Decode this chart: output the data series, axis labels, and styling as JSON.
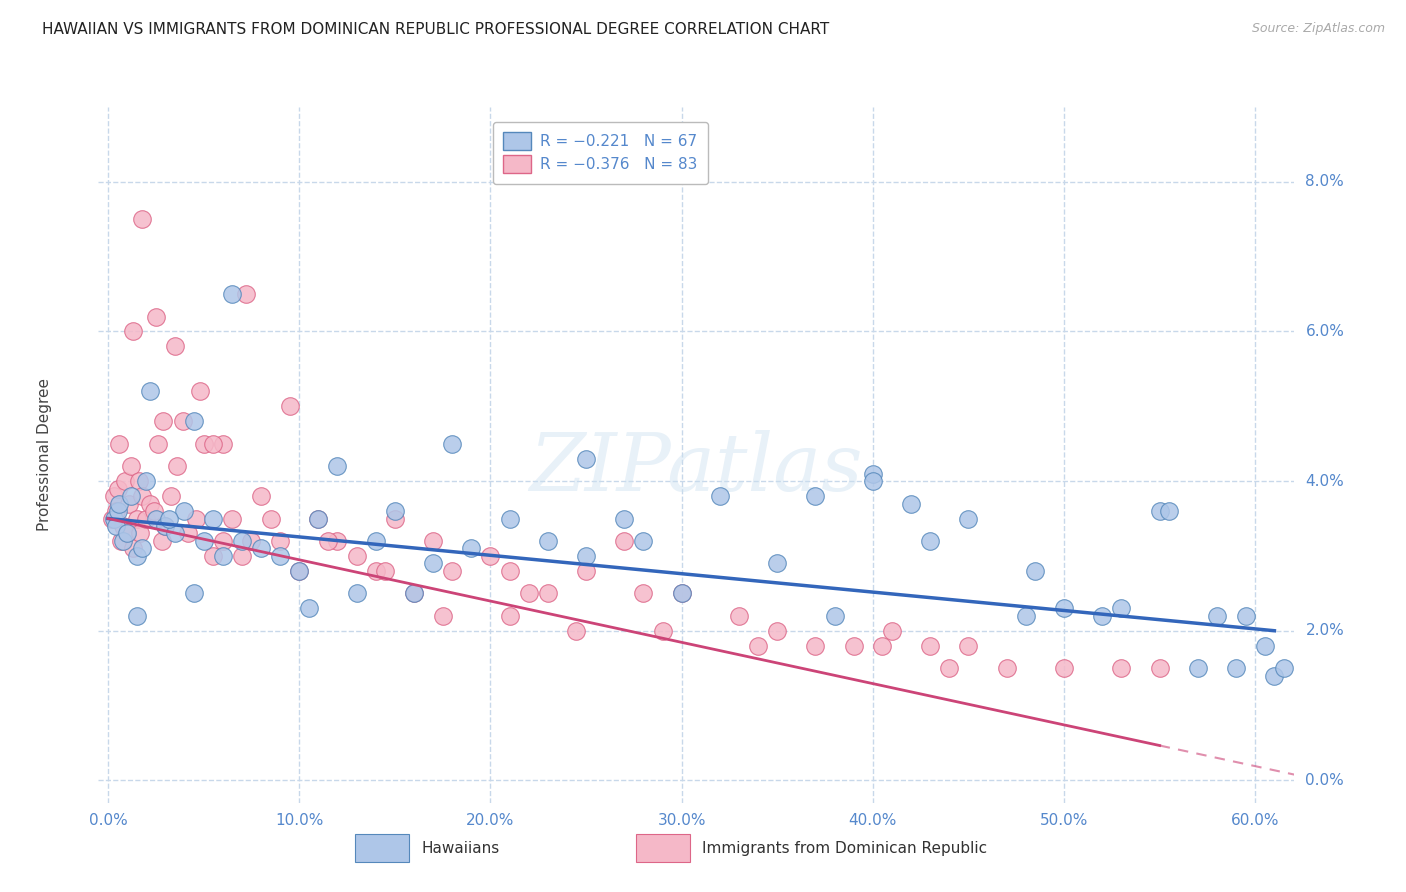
{
  "title": "HAWAIIAN VS IMMIGRANTS FROM DOMINICAN REPUBLIC PROFESSIONAL DEGREE CORRELATION CHART",
  "source": "Source: ZipAtlas.com",
  "xlabel_vals": [
    0.0,
    10.0,
    20.0,
    30.0,
    40.0,
    50.0,
    60.0
  ],
  "ylabel": "Professional Degree",
  "ylabel_vals": [
    0.0,
    2.0,
    4.0,
    6.0,
    8.0
  ],
  "ylim": [
    -0.3,
    9.0
  ],
  "xlim": [
    -0.5,
    62.0
  ],
  "blue_color": "#aec6e8",
  "pink_color": "#f5b8c8",
  "blue_edge": "#5588bb",
  "pink_edge": "#dd6688",
  "trend_blue": "#3366bb",
  "trend_pink": "#cc4477",
  "legend_R1": "R = −0.221",
  "legend_N1": "N = 67",
  "legend_R2": "R = −0.376",
  "legend_N2": "N = 83",
  "blue_line_x0": 0.0,
  "blue_line_y0": 3.5,
  "blue_line_x1": 61.0,
  "blue_line_y1": 2.0,
  "pink_line_x0": 0.0,
  "pink_line_y0": 3.5,
  "pink_line_x1": 58.0,
  "pink_line_y1": 0.3,
  "blue_scatter_x": [
    0.3,
    0.4,
    0.5,
    0.6,
    0.8,
    1.0,
    1.2,
    1.5,
    1.8,
    2.0,
    2.5,
    3.0,
    3.5,
    4.0,
    4.5,
    5.0,
    5.5,
    6.0,
    7.0,
    8.0,
    9.0,
    10.0,
    11.0,
    12.0,
    13.0,
    14.0,
    15.0,
    17.0,
    19.0,
    21.0,
    23.0,
    25.0,
    27.0,
    30.0,
    32.0,
    35.0,
    38.0,
    40.0,
    42.0,
    45.0,
    48.0,
    50.0,
    53.0,
    55.0,
    57.0,
    59.0,
    61.0,
    2.2,
    3.2,
    6.5,
    18.0,
    25.0,
    40.0,
    48.5,
    55.5,
    59.5,
    1.5,
    4.5,
    10.5,
    16.0,
    28.0,
    37.0,
    43.0,
    52.0,
    58.0,
    60.5,
    61.5
  ],
  "blue_scatter_y": [
    3.5,
    3.4,
    3.6,
    3.7,
    3.2,
    3.3,
    3.8,
    3.0,
    3.1,
    4.0,
    3.5,
    3.4,
    3.3,
    3.6,
    4.8,
    3.2,
    3.5,
    3.0,
    3.2,
    3.1,
    3.0,
    2.8,
    3.5,
    4.2,
    2.5,
    3.2,
    3.6,
    2.9,
    3.1,
    3.5,
    3.2,
    3.0,
    3.5,
    2.5,
    3.8,
    2.9,
    2.2,
    4.1,
    3.7,
    3.5,
    2.2,
    2.3,
    2.3,
    3.6,
    1.5,
    1.5,
    1.4,
    5.2,
    3.5,
    6.5,
    4.5,
    4.3,
    4.0,
    2.8,
    3.6,
    2.2,
    2.2,
    2.5,
    2.3,
    2.5,
    3.2,
    3.8,
    3.2,
    2.2,
    2.2,
    1.8,
    1.5
  ],
  "pink_scatter_x": [
    0.2,
    0.3,
    0.4,
    0.5,
    0.6,
    0.7,
    0.8,
    0.9,
    1.0,
    1.1,
    1.2,
    1.3,
    1.5,
    1.6,
    1.7,
    1.8,
    2.0,
    2.2,
    2.4,
    2.6,
    2.8,
    3.0,
    3.3,
    3.6,
    3.9,
    4.2,
    4.6,
    5.0,
    5.5,
    6.0,
    6.5,
    7.0,
    7.5,
    8.0,
    9.0,
    10.0,
    11.0,
    12.0,
    13.0,
    14.0,
    15.0,
    16.0,
    17.0,
    18.0,
    20.0,
    21.0,
    22.0,
    23.0,
    25.0,
    27.0,
    28.0,
    30.0,
    33.0,
    35.0,
    37.0,
    39.0,
    41.0,
    43.0,
    45.0,
    47.0,
    50.0,
    53.0,
    55.0,
    2.5,
    4.8,
    7.2,
    1.8,
    3.5,
    6.0,
    8.5,
    1.3,
    2.9,
    5.5,
    9.5,
    11.5,
    14.5,
    17.5,
    21.0,
    24.5,
    29.0,
    34.0,
    40.5,
    44.0
  ],
  "pink_scatter_y": [
    3.5,
    3.8,
    3.6,
    3.9,
    4.5,
    3.2,
    3.4,
    4.0,
    3.3,
    3.7,
    4.2,
    3.1,
    3.5,
    4.0,
    3.3,
    3.8,
    3.5,
    3.7,
    3.6,
    4.5,
    3.2,
    3.4,
    3.8,
    4.2,
    4.8,
    3.3,
    3.5,
    4.5,
    3.0,
    3.2,
    3.5,
    3.0,
    3.2,
    3.8,
    3.2,
    2.8,
    3.5,
    3.2,
    3.0,
    2.8,
    3.5,
    2.5,
    3.2,
    2.8,
    3.0,
    2.8,
    2.5,
    2.5,
    2.8,
    3.2,
    2.5,
    2.5,
    2.2,
    2.0,
    1.8,
    1.8,
    2.0,
    1.8,
    1.8,
    1.5,
    1.5,
    1.5,
    1.5,
    6.2,
    5.2,
    6.5,
    7.5,
    5.8,
    4.5,
    3.5,
    6.0,
    4.8,
    4.5,
    5.0,
    3.2,
    2.8,
    2.2,
    2.2,
    2.0,
    2.0,
    1.8,
    1.8,
    1.5
  ],
  "watermark_text": "ZIPatlas",
  "title_fontsize": 11,
  "tick_color": "#5588cc",
  "grid_color": "#c8d8ea",
  "background_color": "#ffffff"
}
